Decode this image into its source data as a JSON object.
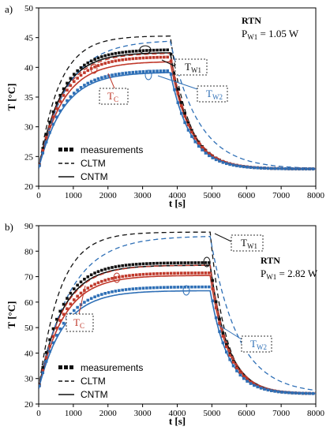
{
  "colors": {
    "black": "#111111",
    "red": "#c0392b",
    "blue": "#2e6fb6",
    "box_border": "#333333"
  },
  "legend_labels": [
    "measurements",
    "CLTM",
    "CNTM"
  ],
  "chart_data": [
    {
      "type": "line",
      "panel_label": "a)",
      "title_line1": "RTN",
      "title_line2": "PW1 = 1.05 W",
      "title_line2_main": "P",
      "title_line2_sub": "W1",
      "title_line2_rest": " = 1.05 W",
      "xlabel": "t [s]",
      "ylabel": "T [°C]",
      "xlim": [
        0,
        8000
      ],
      "ylim": [
        20,
        50
      ],
      "xticks": [
        0,
        1000,
        2000,
        3000,
        4000,
        5000,
        6000,
        7000,
        8000
      ],
      "yticks": [
        20,
        25,
        30,
        35,
        40,
        45,
        50
      ],
      "annotations": [
        {
          "label": "TW1",
          "main": "T",
          "sub": "W1",
          "color": "#111111"
        },
        {
          "label": "TC",
          "main": "T",
          "sub": "C",
          "color": "#c0392b"
        },
        {
          "label": "TW2",
          "main": "T",
          "sub": "W2",
          "color": "#2e6fb6"
        }
      ],
      "series": [
        {
          "group": "TW1",
          "model": "measurements",
          "color": "#111111",
          "T0": 23,
          "Tss": 43.0,
          "tau_h": 650,
          "t_off": 3800,
          "Tend": 22.9,
          "tau_c": 550
        },
        {
          "group": "TW1",
          "model": "CLTM",
          "color": "#111111",
          "T0": 23,
          "Tss": 45.3,
          "tau_h": 600,
          "t_off": 3800,
          "Tend": 22.9,
          "tau_c": 520
        },
        {
          "group": "TW1",
          "model": "CNTM",
          "color": "#111111",
          "T0": 23,
          "Tss": 42.5,
          "tau_h": 650,
          "t_off": 3800,
          "Tend": 22.9,
          "tau_c": 550
        },
        {
          "group": "TC",
          "model": "measurements",
          "color": "#c0392b",
          "T0": 23,
          "Tss": 41.8,
          "tau_h": 680,
          "t_off": 3800,
          "Tend": 22.9,
          "tau_c": 560
        },
        {
          "group": "TC",
          "model": "CLTM",
          "color": "#c0392b",
          "T0": 23,
          "Tss": 42.4,
          "tau_h": 680,
          "t_off": 3800,
          "Tend": 22.9,
          "tau_c": 580
        },
        {
          "group": "TC",
          "model": "CNTM",
          "color": "#c0392b",
          "T0": 23,
          "Tss": 41.0,
          "tau_h": 700,
          "t_off": 3800,
          "Tend": 22.9,
          "tau_c": 580
        },
        {
          "group": "TW2",
          "model": "measurements",
          "color": "#2e6fb6",
          "T0": 23,
          "Tss": 39.5,
          "tau_h": 700,
          "t_off": 3800,
          "Tend": 22.9,
          "tau_c": 560
        },
        {
          "group": "TW2",
          "model": "CLTM",
          "color": "#2e6fb6",
          "T0": 23,
          "Tss": 44.6,
          "tau_h": 820,
          "t_off": 3800,
          "Tend": 22.9,
          "tau_c": 820
        },
        {
          "group": "TW2",
          "model": "CNTM",
          "color": "#2e6fb6",
          "T0": 23,
          "Tss": 39.2,
          "tau_h": 720,
          "t_off": 3800,
          "Tend": 22.9,
          "tau_c": 580
        }
      ]
    },
    {
      "type": "line",
      "panel_label": "b)",
      "title_line1": "RTN",
      "title_line2": "PW1 = 2.82 W",
      "title_line2_main": "P",
      "title_line2_sub": "W1",
      "title_line2_rest": " = 2.82 W",
      "xlabel": "t [s]",
      "ylabel": "T [°C]",
      "xlim": [
        0,
        8000
      ],
      "ylim": [
        20,
        90
      ],
      "xticks": [
        0,
        1000,
        2000,
        3000,
        4000,
        5000,
        6000,
        7000,
        8000
      ],
      "yticks": [
        20,
        30,
        40,
        50,
        60,
        70,
        80,
        90
      ],
      "annotations": [
        {
          "label": "TW1",
          "main": "T",
          "sub": "W1",
          "color": "#111111"
        },
        {
          "label": "TC",
          "main": "T",
          "sub": "C",
          "color": "#c0392b"
        },
        {
          "label": "TW2",
          "main": "T",
          "sub": "W2",
          "color": "#2e6fb6"
        }
      ],
      "series": [
        {
          "group": "TW1",
          "model": "measurements",
          "color": "#111111",
          "T0": 26,
          "Tss": 75.5,
          "tau_h": 650,
          "t_off": 4950,
          "Tend": 24.0,
          "tau_c": 480
        },
        {
          "group": "TW1",
          "model": "CLTM",
          "color": "#111111",
          "T0": 26,
          "Tss": 87.5,
          "tau_h": 620,
          "t_off": 4950,
          "Tend": 24.0,
          "tau_c": 450
        },
        {
          "group": "TW1",
          "model": "CNTM",
          "color": "#111111",
          "T0": 26,
          "Tss": 74.5,
          "tau_h": 680,
          "t_off": 4950,
          "Tend": 24.0,
          "tau_c": 520
        },
        {
          "group": "TC",
          "model": "measurements",
          "color": "#c0392b",
          "T0": 26,
          "Tss": 71.5,
          "tau_h": 700,
          "t_off": 4950,
          "Tend": 24.0,
          "tau_c": 500
        },
        {
          "group": "TC",
          "model": "CLTM",
          "color": "#c0392b",
          "T0": 26,
          "Tss": 74.5,
          "tau_h": 700,
          "t_off": 4950,
          "Tend": 24.0,
          "tau_c": 520
        },
        {
          "group": "TC",
          "model": "CNTM",
          "color": "#c0392b",
          "T0": 26,
          "Tss": 70.5,
          "tau_h": 720,
          "t_off": 4950,
          "Tend": 24.0,
          "tau_c": 520
        },
        {
          "group": "TW2",
          "model": "measurements",
          "color": "#2e6fb6",
          "T0": 26,
          "Tss": 66.0,
          "tau_h": 700,
          "t_off": 4950,
          "Tend": 24.0,
          "tau_c": 500
        },
        {
          "group": "TW2",
          "model": "CLTM",
          "color": "#2e6fb6",
          "T0": 26,
          "Tss": 86.0,
          "tau_h": 900,
          "t_off": 4950,
          "Tend": 24.0,
          "tau_c": 800
        },
        {
          "group": "TW2",
          "model": "CNTM",
          "color": "#2e6fb6",
          "T0": 26,
          "Tss": 64.5,
          "tau_h": 720,
          "t_off": 4950,
          "Tend": 24.0,
          "tau_c": 520
        }
      ]
    }
  ]
}
